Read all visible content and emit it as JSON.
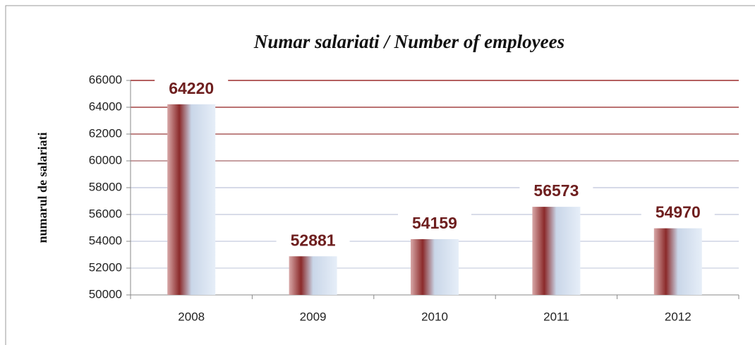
{
  "chart_data": {
    "type": "bar",
    "title": "Numar salariati / Number of employees",
    "ylabel": "numarul  de salariati",
    "categories": [
      "2008",
      "2009",
      "2010",
      "2011",
      "2012"
    ],
    "values": [
      64220,
      52881,
      54159,
      56573,
      54970
    ],
    "color": "#8b2a2a",
    "ylim": [
      50000,
      66000
    ],
    "yticks": [
      50000,
      52000,
      54000,
      56000,
      58000,
      60000,
      62000,
      64000,
      66000
    ],
    "grid": true
  }
}
